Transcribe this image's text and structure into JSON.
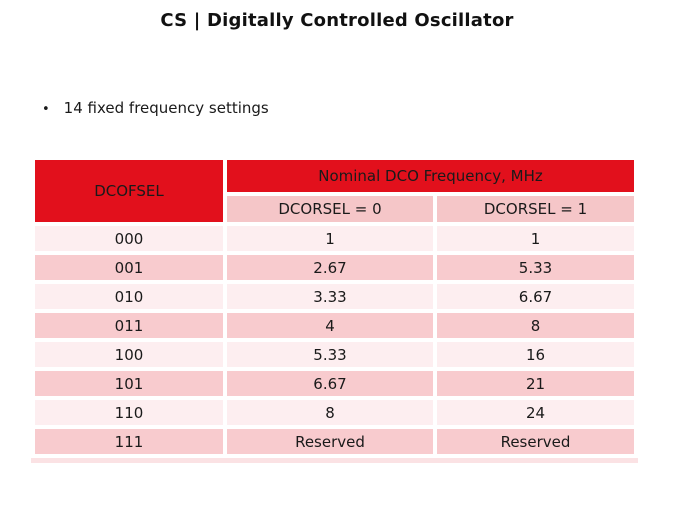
{
  "title": "CS | Digitally Controlled Oscillator",
  "bullets": [
    {
      "marker": "•",
      "text": "14 fixed frequency settings"
    }
  ],
  "table": {
    "corner_header": "DCOFSEL",
    "group_header": "Nominal DCO Frequency, MHz",
    "sub_headers": [
      "DCORSEL = 0",
      "DCORSEL = 1"
    ],
    "rows": [
      [
        "000",
        "1",
        "1"
      ],
      [
        "001",
        "2.67",
        "5.33"
      ],
      [
        "010",
        "3.33",
        "6.67"
      ],
      [
        "011",
        "4",
        "8"
      ],
      [
        "100",
        "5.33",
        "16"
      ],
      [
        "101",
        "6.67",
        "21"
      ],
      [
        "110",
        "8",
        "24"
      ],
      [
        "111",
        "Reserved",
        "Reserved"
      ]
    ]
  },
  "colors": {
    "header_red": "#e2101c",
    "header_text": "#ffffff",
    "subheader_pink": "#f5c6c8",
    "row_light_pink": "#fdeef0",
    "row_dark_pink": "#f8cbce",
    "bottom_strip_pink": "#fbe2e4",
    "body_text": "#1a1a1a",
    "background": "#ffffff"
  }
}
